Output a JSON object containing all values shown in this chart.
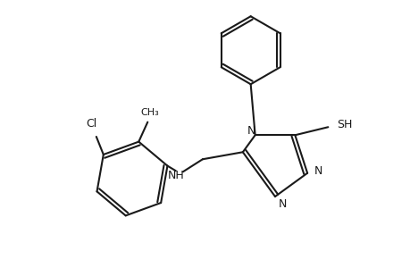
{
  "background_color": "#ffffff",
  "line_color": "#1a1a1a",
  "line_width": 1.5,
  "font_size": 9,
  "font_size_small": 8,
  "xlim": [
    0,
    460
  ],
  "ylim": [
    0,
    300
  ]
}
